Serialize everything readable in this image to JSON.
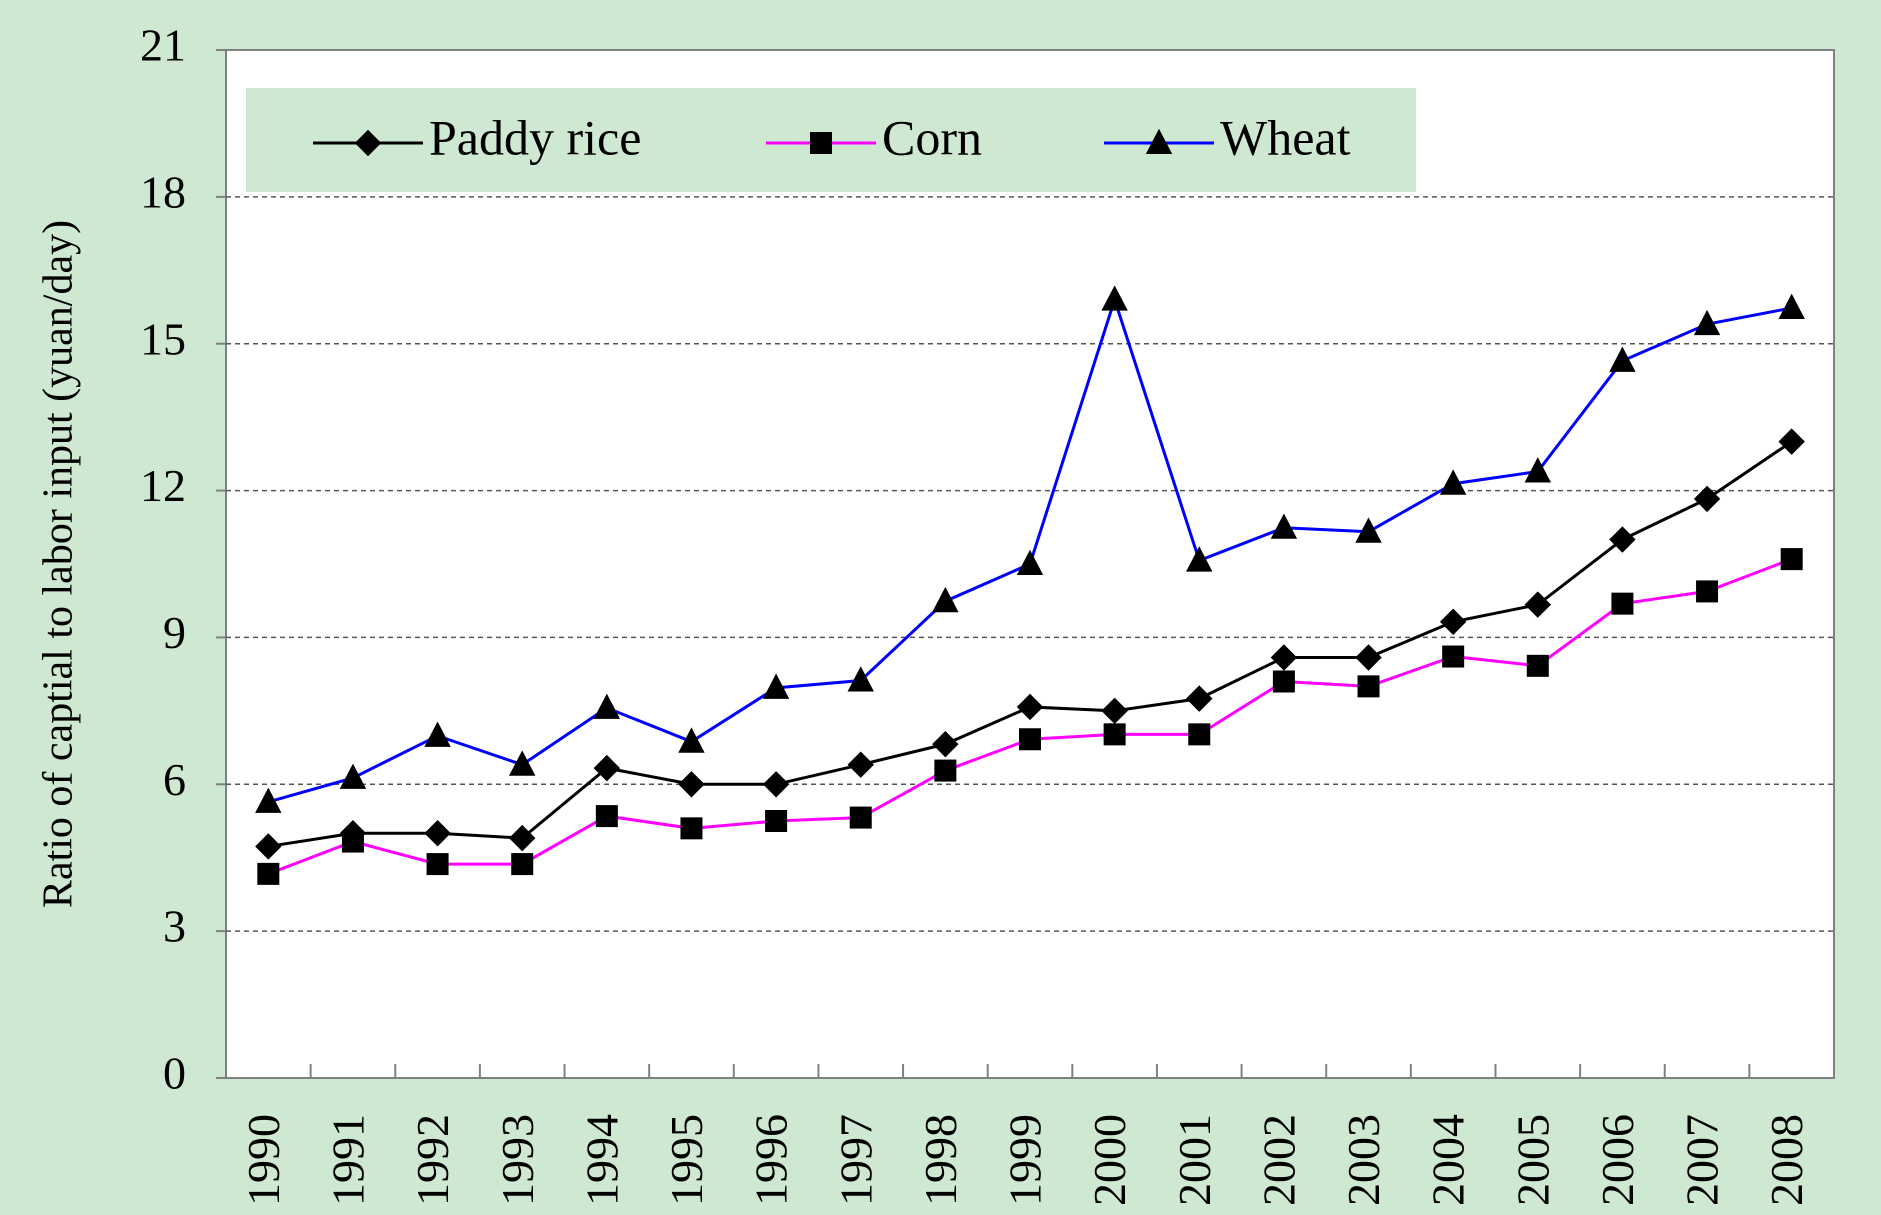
{
  "chart_data": {
    "type": "line",
    "y_label": "Ratio of captial to labor input (yuan/day)",
    "categories": [
      "1990",
      "1991",
      "1992",
      "1993",
      "1994",
      "1995",
      "1996",
      "1997",
      "1998",
      "1999",
      "2000",
      "2001",
      "2002",
      "2003",
      "2004",
      "2005",
      "2006",
      "2007",
      "2008"
    ],
    "series": [
      {
        "name": "Paddy rice",
        "color": "#000000",
        "marker": "diamond",
        "values": [
          4.73,
          5.0,
          5.0,
          4.9,
          6.33,
          6.0,
          6.0,
          6.4,
          6.82,
          7.58,
          7.5,
          7.75,
          8.59,
          8.59,
          9.32,
          9.67,
          11.0,
          11.83,
          13.0
        ]
      },
      {
        "name": "Corn",
        "color": "#ff00ff",
        "marker": "square",
        "values": [
          4.17,
          4.83,
          4.37,
          4.37,
          5.35,
          5.1,
          5.25,
          5.32,
          6.28,
          6.92,
          7.02,
          7.02,
          8.1,
          8.0,
          8.61,
          8.42,
          9.69,
          9.94,
          10.6
        ]
      },
      {
        "name": "Wheat",
        "color": "#0000ff",
        "marker": "triangle",
        "values": [
          5.64,
          6.13,
          6.99,
          6.4,
          7.56,
          6.87,
          7.97,
          8.12,
          9.74,
          10.5,
          15.9,
          10.57,
          11.24,
          11.16,
          12.14,
          12.39,
          14.65,
          15.4,
          15.73
        ]
      }
    ],
    "ylim": [
      0,
      21
    ],
    "yticks": [
      0,
      3,
      6,
      9,
      12,
      15,
      18,
      21
    ],
    "grid": true,
    "legend": "top-left"
  }
}
